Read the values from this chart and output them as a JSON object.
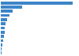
{
  "values": [
    100,
    30,
    17,
    12,
    9,
    7,
    6,
    5,
    4,
    3.2,
    2.3,
    1.4,
    0.7
  ],
  "bar_color": "#3d85c8",
  "background_color": "#ffffff",
  "grid_color": "#c8c8c8",
  "bar_height": 0.72,
  "figsize": [
    1.0,
    0.71
  ],
  "dpi": 100
}
